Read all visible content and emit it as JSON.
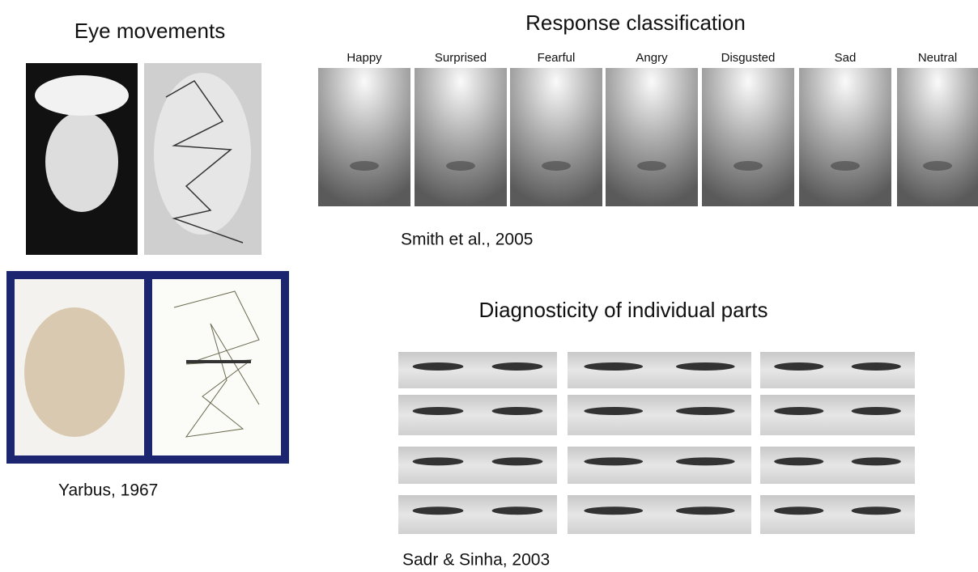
{
  "eye_movements": {
    "title": "Eye movements",
    "caption": "Yarbus, 1967"
  },
  "response_classification": {
    "title": "Response classification",
    "labels": [
      "Happy",
      "Surprised",
      "Fearful",
      "Angry",
      "Disgusted",
      "Sad",
      "Neutral"
    ],
    "caption": "Smith et al., 2005"
  },
  "diagnosticity": {
    "title": "Diagnosticity of individual parts",
    "caption": "Sadr & Sinha, 2003"
  }
}
